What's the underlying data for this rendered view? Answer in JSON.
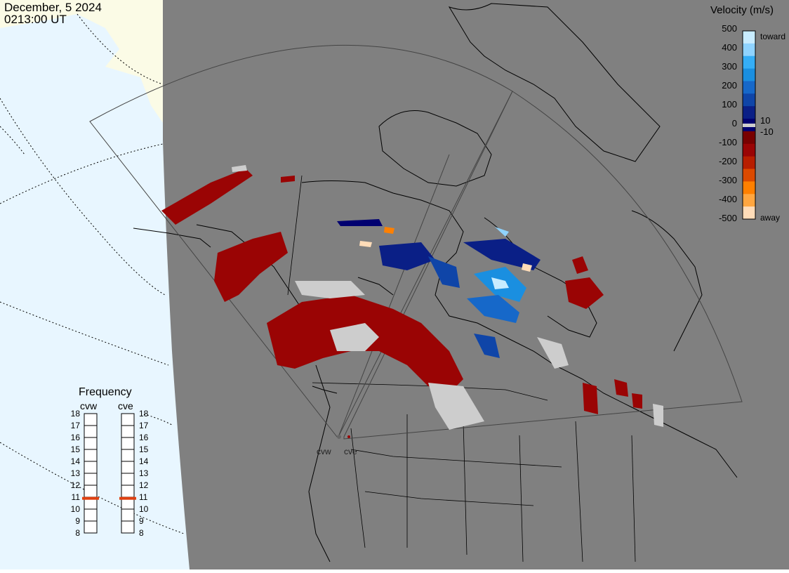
{
  "header": {
    "date": "December, 5 2024",
    "time": "0213:00 UT"
  },
  "colorbar": {
    "title": "Velocity (m/s)",
    "ticks": [
      "500",
      "400",
      "300",
      "200",
      "100",
      "0",
      "-100",
      "-200",
      "-300",
      "-400",
      "-500"
    ],
    "threshold_pos": "10",
    "threshold_neg": "-10",
    "toward_label": "toward",
    "away_label": "away",
    "colors": [
      "#c8ecff",
      "#8fd3ff",
      "#35aef6",
      "#1a8fe0",
      "#1668c9",
      "#0f45a8",
      "#0a1f86",
      "#000070",
      "#780000",
      "#9a0404",
      "#b81e00",
      "#dc4a00",
      "#ff8000",
      "#ffa640",
      "#ffdcb8"
    ]
  },
  "frequency": {
    "title": "Frequency",
    "stations": [
      {
        "name": "cvw",
        "value_mhz": 10.9
      },
      {
        "name": "cve",
        "value_mhz": 10.9
      }
    ],
    "scale": [
      "18",
      "17",
      "16",
      "15",
      "14",
      "13",
      "12",
      "11",
      "10",
      "9",
      "8"
    ]
  },
  "radar_sites": [
    {
      "label": "cvw"
    },
    {
      "label": "cve"
    }
  ],
  "colors": {
    "ocean": "#808080",
    "land_sunlit_left": "#e8f6ff",
    "ice": "#fbfbe6",
    "outline": "#000000",
    "ground_scatter": "#cdcdcd",
    "indicator": "#e04010"
  }
}
